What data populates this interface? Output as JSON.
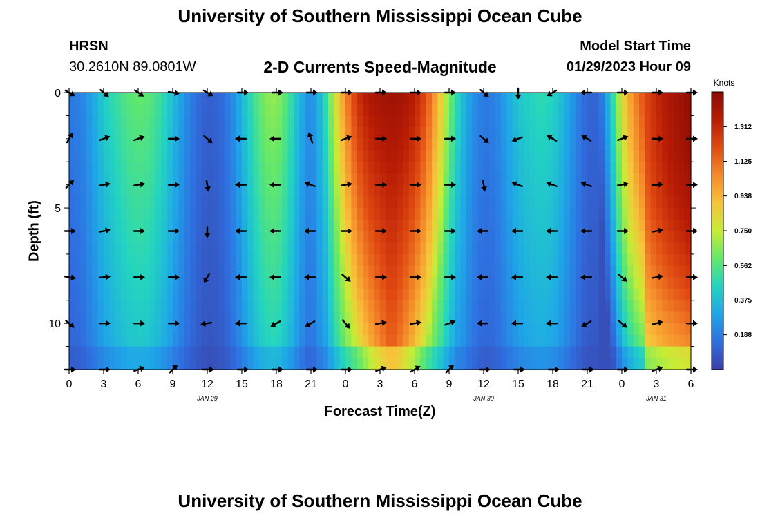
{
  "header": {
    "title": "University of Southern Mississippi Ocean Cube",
    "station": "HRSN",
    "coords": "30.2610N  89.0801W",
    "product": "2-D Currents Speed-Magnitude",
    "model_label": "Model Start Time",
    "model_time": "01/29/2023 Hour 09"
  },
  "footer": {
    "title": "University of Southern Mississippi Ocean Cube"
  },
  "colors": {
    "scale": [
      "#3b3fa6",
      "#2f6fe0",
      "#1fa6e8",
      "#23d4c0",
      "#63e86a",
      "#c8ec35",
      "#f7c33a",
      "#f58a2a",
      "#e04a12",
      "#b81c05",
      "#8a0c03"
    ]
  },
  "chart_data": {
    "type": "heatmap",
    "title": "2-D Currents Speed-Magnitude",
    "xlabel": "Forecast Time(Z)",
    "ylabel": "Depth (ft)",
    "x_ticks": [
      "0",
      "3",
      "6",
      "9",
      "12",
      "15",
      "18",
      "21",
      "0",
      "3",
      "6",
      "9",
      "12",
      "15",
      "18",
      "21",
      "0",
      "3",
      "6"
    ],
    "x_hours": [
      0,
      3,
      6,
      9,
      12,
      15,
      18,
      21,
      24,
      27,
      30,
      33,
      36,
      39,
      42,
      45,
      48,
      51,
      54
    ],
    "date_labels": [
      {
        "label": "JAN 29",
        "hour": 12
      },
      {
        "label": "JAN 30",
        "hour": 36
      },
      {
        "label": "JAN 31",
        "hour": 51
      }
    ],
    "y_ticks": [
      "0",
      "5",
      "10"
    ],
    "y_tick_values": [
      0,
      5,
      10
    ],
    "ylim": [
      0,
      12
    ],
    "xlim": [
      0,
      54
    ],
    "depths": [
      0,
      2,
      4,
      6,
      8,
      10,
      12
    ],
    "colorbar": {
      "title": "Knots",
      "ticks": [
        "0.188",
        "0.375",
        "0.562",
        "0.750",
        "0.938",
        "1.125",
        "1.312"
      ],
      "tick_values": [
        0.188,
        0.375,
        0.562,
        0.75,
        0.938,
        1.125,
        1.312
      ],
      "range": [
        0,
        1.5
      ]
    },
    "surface_speed": [
      {
        "hour": 0,
        "speed": 0.18
      },
      {
        "hour": 1,
        "speed": 0.2
      },
      {
        "hour": 2,
        "speed": 0.3
      },
      {
        "hour": 3,
        "speed": 0.42
      },
      {
        "hour": 4,
        "speed": 0.5
      },
      {
        "hour": 5,
        "speed": 0.57
      },
      {
        "hour": 6,
        "speed": 0.6
      },
      {
        "hour": 7,
        "speed": 0.58
      },
      {
        "hour": 8,
        "speed": 0.5
      },
      {
        "hour": 9,
        "speed": 0.38
      },
      {
        "hour": 10,
        "speed": 0.25
      },
      {
        "hour": 11,
        "speed": 0.15
      },
      {
        "hour": 12,
        "speed": 0.1
      },
      {
        "hour": 13,
        "speed": 0.12
      },
      {
        "hour": 14,
        "speed": 0.2
      },
      {
        "hour": 15,
        "speed": 0.35
      },
      {
        "hour": 16,
        "speed": 0.52
      },
      {
        "hour": 17,
        "speed": 0.65
      },
      {
        "hour": 18,
        "speed": 0.68
      },
      {
        "hour": 19,
        "speed": 0.55
      },
      {
        "hour": 20,
        "speed": 0.35
      },
      {
        "hour": 21,
        "speed": 0.22
      },
      {
        "hour": 22,
        "speed": 0.4
      },
      {
        "hour": 23,
        "speed": 0.75
      },
      {
        "hour": 24,
        "speed": 1.05
      },
      {
        "hour": 25,
        "speed": 1.28
      },
      {
        "hour": 26,
        "speed": 1.38
      },
      {
        "hour": 27,
        "speed": 1.42
      },
      {
        "hour": 28,
        "speed": 1.44
      },
      {
        "hour": 29,
        "speed": 1.42
      },
      {
        "hour": 30,
        "speed": 1.35
      },
      {
        "hour": 31,
        "speed": 1.2
      },
      {
        "hour": 32,
        "speed": 0.95
      },
      {
        "hour": 33,
        "speed": 0.65
      },
      {
        "hour": 34,
        "speed": 0.4
      },
      {
        "hour": 35,
        "speed": 0.25
      },
      {
        "hour": 36,
        "speed": 0.18
      },
      {
        "hour": 37,
        "speed": 0.2
      },
      {
        "hour": 38,
        "speed": 0.3
      },
      {
        "hour": 39,
        "speed": 0.4
      },
      {
        "hour": 40,
        "speed": 0.45
      },
      {
        "hour": 41,
        "speed": 0.48
      },
      {
        "hour": 42,
        "speed": 0.45
      },
      {
        "hour": 43,
        "speed": 0.35
      },
      {
        "hour": 44,
        "speed": 0.22
      },
      {
        "hour": 45,
        "speed": 0.12
      },
      {
        "hour": 46,
        "speed": 0.12
      },
      {
        "hour": 47,
        "speed": 0.4
      },
      {
        "hour": 48,
        "speed": 0.8
      },
      {
        "hour": 49,
        "speed": 1.05
      },
      {
        "hour": 50,
        "speed": 1.2
      },
      {
        "hour": 51,
        "speed": 1.3
      },
      {
        "hour": 52,
        "speed": 1.38
      },
      {
        "hour": 53,
        "speed": 1.43
      },
      {
        "hour": 54,
        "speed": 1.48
      }
    ],
    "vectors": [
      {
        "depth": 0,
        "points": [
          [
            0,
            30
          ],
          [
            3,
            40
          ],
          [
            6,
            35
          ],
          [
            9,
            10
          ],
          [
            12,
            30
          ],
          [
            15,
            0
          ],
          [
            18,
            0
          ],
          [
            21,
            0
          ],
          [
            24,
            0
          ],
          [
            27,
            0
          ],
          [
            30,
            0
          ],
          [
            33,
            0
          ],
          [
            36,
            40
          ],
          [
            39,
            90
          ],
          [
            42,
            150
          ],
          [
            45,
            180
          ],
          [
            48,
            0
          ],
          [
            51,
            0
          ],
          [
            54,
            0
          ]
        ]
      },
      {
        "depth": 2,
        "points": [
          [
            0,
            -60
          ],
          [
            3,
            -20
          ],
          [
            6,
            -20
          ],
          [
            9,
            0
          ],
          [
            12,
            40
          ],
          [
            15,
            180
          ],
          [
            18,
            180
          ],
          [
            21,
            -110
          ],
          [
            24,
            -20
          ],
          [
            27,
            0
          ],
          [
            30,
            0
          ],
          [
            33,
            0
          ],
          [
            36,
            40
          ],
          [
            39,
            160
          ],
          [
            42,
            -150
          ],
          [
            45,
            -150
          ],
          [
            48,
            -20
          ],
          [
            51,
            0
          ],
          [
            54,
            0
          ]
        ]
      },
      {
        "depth": 4,
        "points": [
          [
            0,
            -45
          ],
          [
            3,
            -10
          ],
          [
            6,
            -10
          ],
          [
            9,
            0
          ],
          [
            12,
            80
          ],
          [
            15,
            180
          ],
          [
            18,
            180
          ],
          [
            21,
            200
          ],
          [
            24,
            -10
          ],
          [
            27,
            0
          ],
          [
            30,
            0
          ],
          [
            33,
            0
          ],
          [
            36,
            80
          ],
          [
            39,
            200
          ],
          [
            42,
            200
          ],
          [
            45,
            200
          ],
          [
            48,
            -10
          ],
          [
            51,
            -5
          ],
          [
            54,
            0
          ]
        ]
      },
      {
        "depth": 6,
        "points": [
          [
            0,
            0
          ],
          [
            3,
            -10
          ],
          [
            6,
            0
          ],
          [
            9,
            0
          ],
          [
            12,
            90
          ],
          [
            15,
            180
          ],
          [
            18,
            180
          ],
          [
            21,
            180
          ],
          [
            24,
            0
          ],
          [
            27,
            0
          ],
          [
            30,
            0
          ],
          [
            33,
            0
          ],
          [
            36,
            180
          ],
          [
            39,
            180
          ],
          [
            42,
            180
          ],
          [
            45,
            180
          ],
          [
            48,
            0
          ],
          [
            51,
            -10
          ],
          [
            54,
            0
          ]
        ]
      },
      {
        "depth": 8,
        "points": [
          [
            0,
            10
          ],
          [
            3,
            -5
          ],
          [
            6,
            0
          ],
          [
            9,
            0
          ],
          [
            12,
            120
          ],
          [
            15,
            180
          ],
          [
            18,
            180
          ],
          [
            21,
            180
          ],
          [
            24,
            40
          ],
          [
            27,
            0
          ],
          [
            30,
            0
          ],
          [
            33,
            0
          ],
          [
            36,
            180
          ],
          [
            39,
            180
          ],
          [
            42,
            180
          ],
          [
            45,
            180
          ],
          [
            48,
            40
          ],
          [
            51,
            -10
          ],
          [
            54,
            0
          ]
        ]
      },
      {
        "depth": 10,
        "points": [
          [
            0,
            40
          ],
          [
            3,
            0
          ],
          [
            6,
            0
          ],
          [
            9,
            0
          ],
          [
            12,
            170
          ],
          [
            15,
            180
          ],
          [
            18,
            150
          ],
          [
            21,
            150
          ],
          [
            24,
            50
          ],
          [
            27,
            -10
          ],
          [
            30,
            -10
          ],
          [
            33,
            -20
          ],
          [
            36,
            180
          ],
          [
            39,
            180
          ],
          [
            42,
            180
          ],
          [
            45,
            150
          ],
          [
            48,
            40
          ],
          [
            51,
            -15
          ],
          [
            54,
            0
          ]
        ]
      },
      {
        "depth": 12,
        "points": [
          [
            0,
            0
          ],
          [
            3,
            0
          ],
          [
            6,
            -20
          ],
          [
            9,
            -45
          ],
          [
            12,
            0
          ],
          [
            15,
            0
          ],
          [
            18,
            0
          ],
          [
            21,
            0
          ],
          [
            24,
            0
          ],
          [
            27,
            -20
          ],
          [
            30,
            -30
          ],
          [
            33,
            -45
          ],
          [
            36,
            0
          ],
          [
            39,
            0
          ],
          [
            42,
            0
          ],
          [
            45,
            0
          ],
          [
            48,
            0
          ],
          [
            51,
            -20
          ],
          [
            54,
            0
          ]
        ]
      }
    ]
  }
}
